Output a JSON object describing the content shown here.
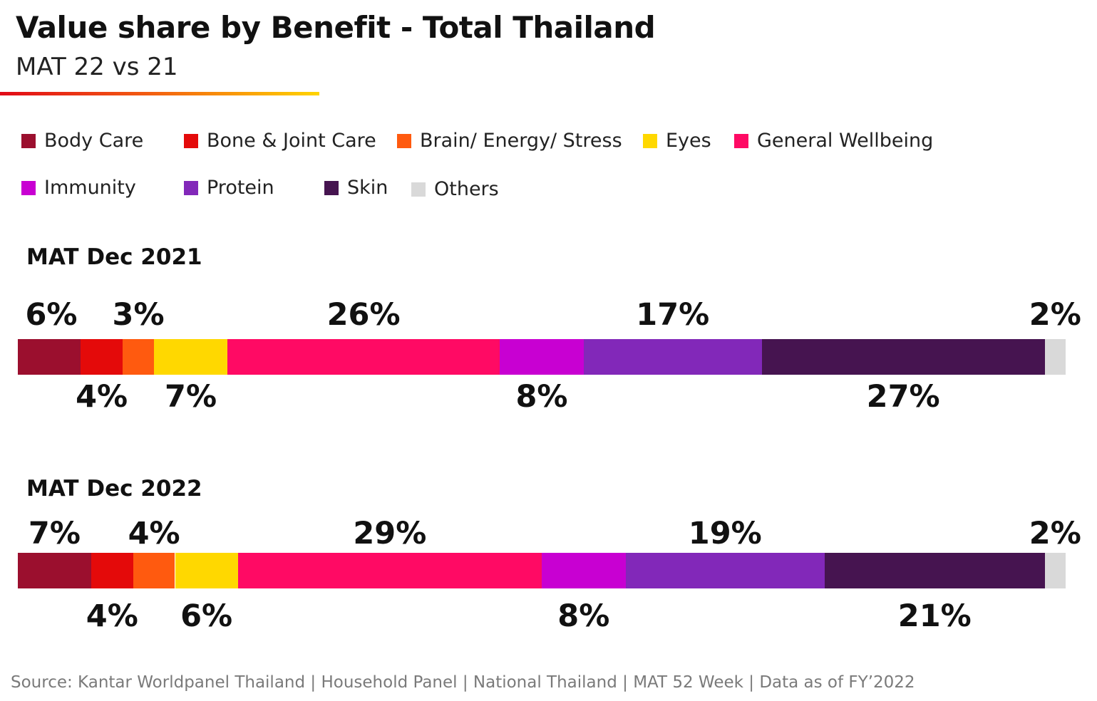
{
  "header": {
    "title": "Value share by Benefit - Total Thailand",
    "subtitle": "MAT 22 vs 21"
  },
  "colors": {
    "accent_gradient": [
      "#e10a17",
      "#f25a12",
      "#ffd400"
    ]
  },
  "legend": [
    {
      "label": "Body Care",
      "color": "#9b0f2e"
    },
    {
      "label": "Bone & Joint Care",
      "color": "#e40a0a"
    },
    {
      "label": "Brain/ Energy/ Stress",
      "color": "#ff5a0f"
    },
    {
      "label": "Eyes",
      "color": "#ffd800"
    },
    {
      "label": "General Wellbeing",
      "color": "#ff0a64"
    },
    {
      "label": "Immunity",
      "color": "#c800d2"
    },
    {
      "label": "Protein",
      "color": "#8228b9"
    },
    {
      "label": "Skin",
      "color": "#461450"
    },
    {
      "label": "Others",
      "color": "#d9d9d9"
    }
  ],
  "chart_data": {
    "type": "bar",
    "orientation": "horizontal",
    "stacked": "100%",
    "categories": [
      "MAT Dec 2021",
      "MAT Dec 2022"
    ],
    "series": [
      {
        "name": "Body Care",
        "values": [
          6,
          7
        ],
        "labels": [
          "6%",
          "7%"
        ]
      },
      {
        "name": "Bone & Joint Care",
        "values": [
          4,
          4
        ],
        "labels": [
          "4%",
          "4%"
        ]
      },
      {
        "name": "Brain/ Energy/ Stress",
        "values": [
          3,
          4
        ],
        "labels": [
          "3%",
          "4%"
        ]
      },
      {
        "name": "Eyes",
        "values": [
          7,
          6
        ],
        "labels": [
          "7%",
          "6%"
        ]
      },
      {
        "name": "General Wellbeing",
        "values": [
          26,
          29
        ],
        "labels": [
          "26%",
          "29%"
        ]
      },
      {
        "name": "Immunity",
        "values": [
          8,
          8
        ],
        "labels": [
          "8%",
          "8%"
        ]
      },
      {
        "name": "Protein",
        "values": [
          17,
          19
        ],
        "labels": [
          "17%",
          "19%"
        ]
      },
      {
        "name": "Skin",
        "values": [
          27,
          21
        ],
        "labels": [
          "27%",
          "21%"
        ]
      },
      {
        "name": "Others",
        "values": [
          2,
          2
        ],
        "labels": [
          "2%",
          "2%"
        ]
      }
    ],
    "label_positions": [
      "above",
      "below",
      "above",
      "below",
      "above",
      "below",
      "above",
      "below",
      "above"
    ],
    "legend_position": "top",
    "grid": false
  },
  "source": "Source: Kantar Worldpanel Thailand | Household Panel | National Thailand | MAT 52 Week | Data as of FY’2022"
}
